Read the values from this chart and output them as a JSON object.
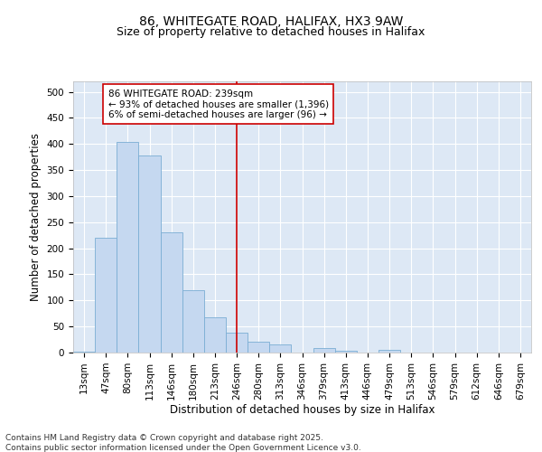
{
  "title_line1": "86, WHITEGATE ROAD, HALIFAX, HX3 9AW",
  "title_line2": "Size of property relative to detached houses in Halifax",
  "xlabel": "Distribution of detached houses by size in Halifax",
  "ylabel": "Number of detached properties",
  "categories": [
    "13sqm",
    "47sqm",
    "80sqm",
    "113sqm",
    "146sqm",
    "180sqm",
    "213sqm",
    "246sqm",
    "280sqm",
    "313sqm",
    "346sqm",
    "379sqm",
    "413sqm",
    "446sqm",
    "479sqm",
    "513sqm",
    "546sqm",
    "579sqm",
    "612sqm",
    "646sqm",
    "679sqm"
  ],
  "values": [
    2,
    220,
    403,
    377,
    230,
    120,
    68,
    38,
    20,
    15,
    0,
    8,
    3,
    0,
    5,
    0,
    0,
    0,
    0,
    0,
    0
  ],
  "bar_color": "#c5d8f0",
  "bar_edge_color": "#7aadd4",
  "vline_x_index": 7,
  "vline_color": "#cc0000",
  "annotation_text": "86 WHITEGATE ROAD: 239sqm\n← 93% of detached houses are smaller (1,396)\n6% of semi-detached houses are larger (96) →",
  "annotation_box_color": "#ffffff",
  "annotation_box_edge": "#cc0000",
  "background_color": "#ffffff",
  "plot_bg_color": "#dde8f5",
  "grid_color": "#ffffff",
  "footer_line1": "Contains HM Land Registry data © Crown copyright and database right 2025.",
  "footer_line2": "Contains public sector information licensed under the Open Government Licence v3.0.",
  "ylim": [
    0,
    520
  ],
  "yticks": [
    0,
    50,
    100,
    150,
    200,
    250,
    300,
    350,
    400,
    450,
    500
  ],
  "title_fontsize": 10,
  "subtitle_fontsize": 9,
  "tick_fontsize": 7.5,
  "ylabel_fontsize": 8.5,
  "xlabel_fontsize": 8.5,
  "annotation_fontsize": 7.5,
  "footer_fontsize": 6.5
}
